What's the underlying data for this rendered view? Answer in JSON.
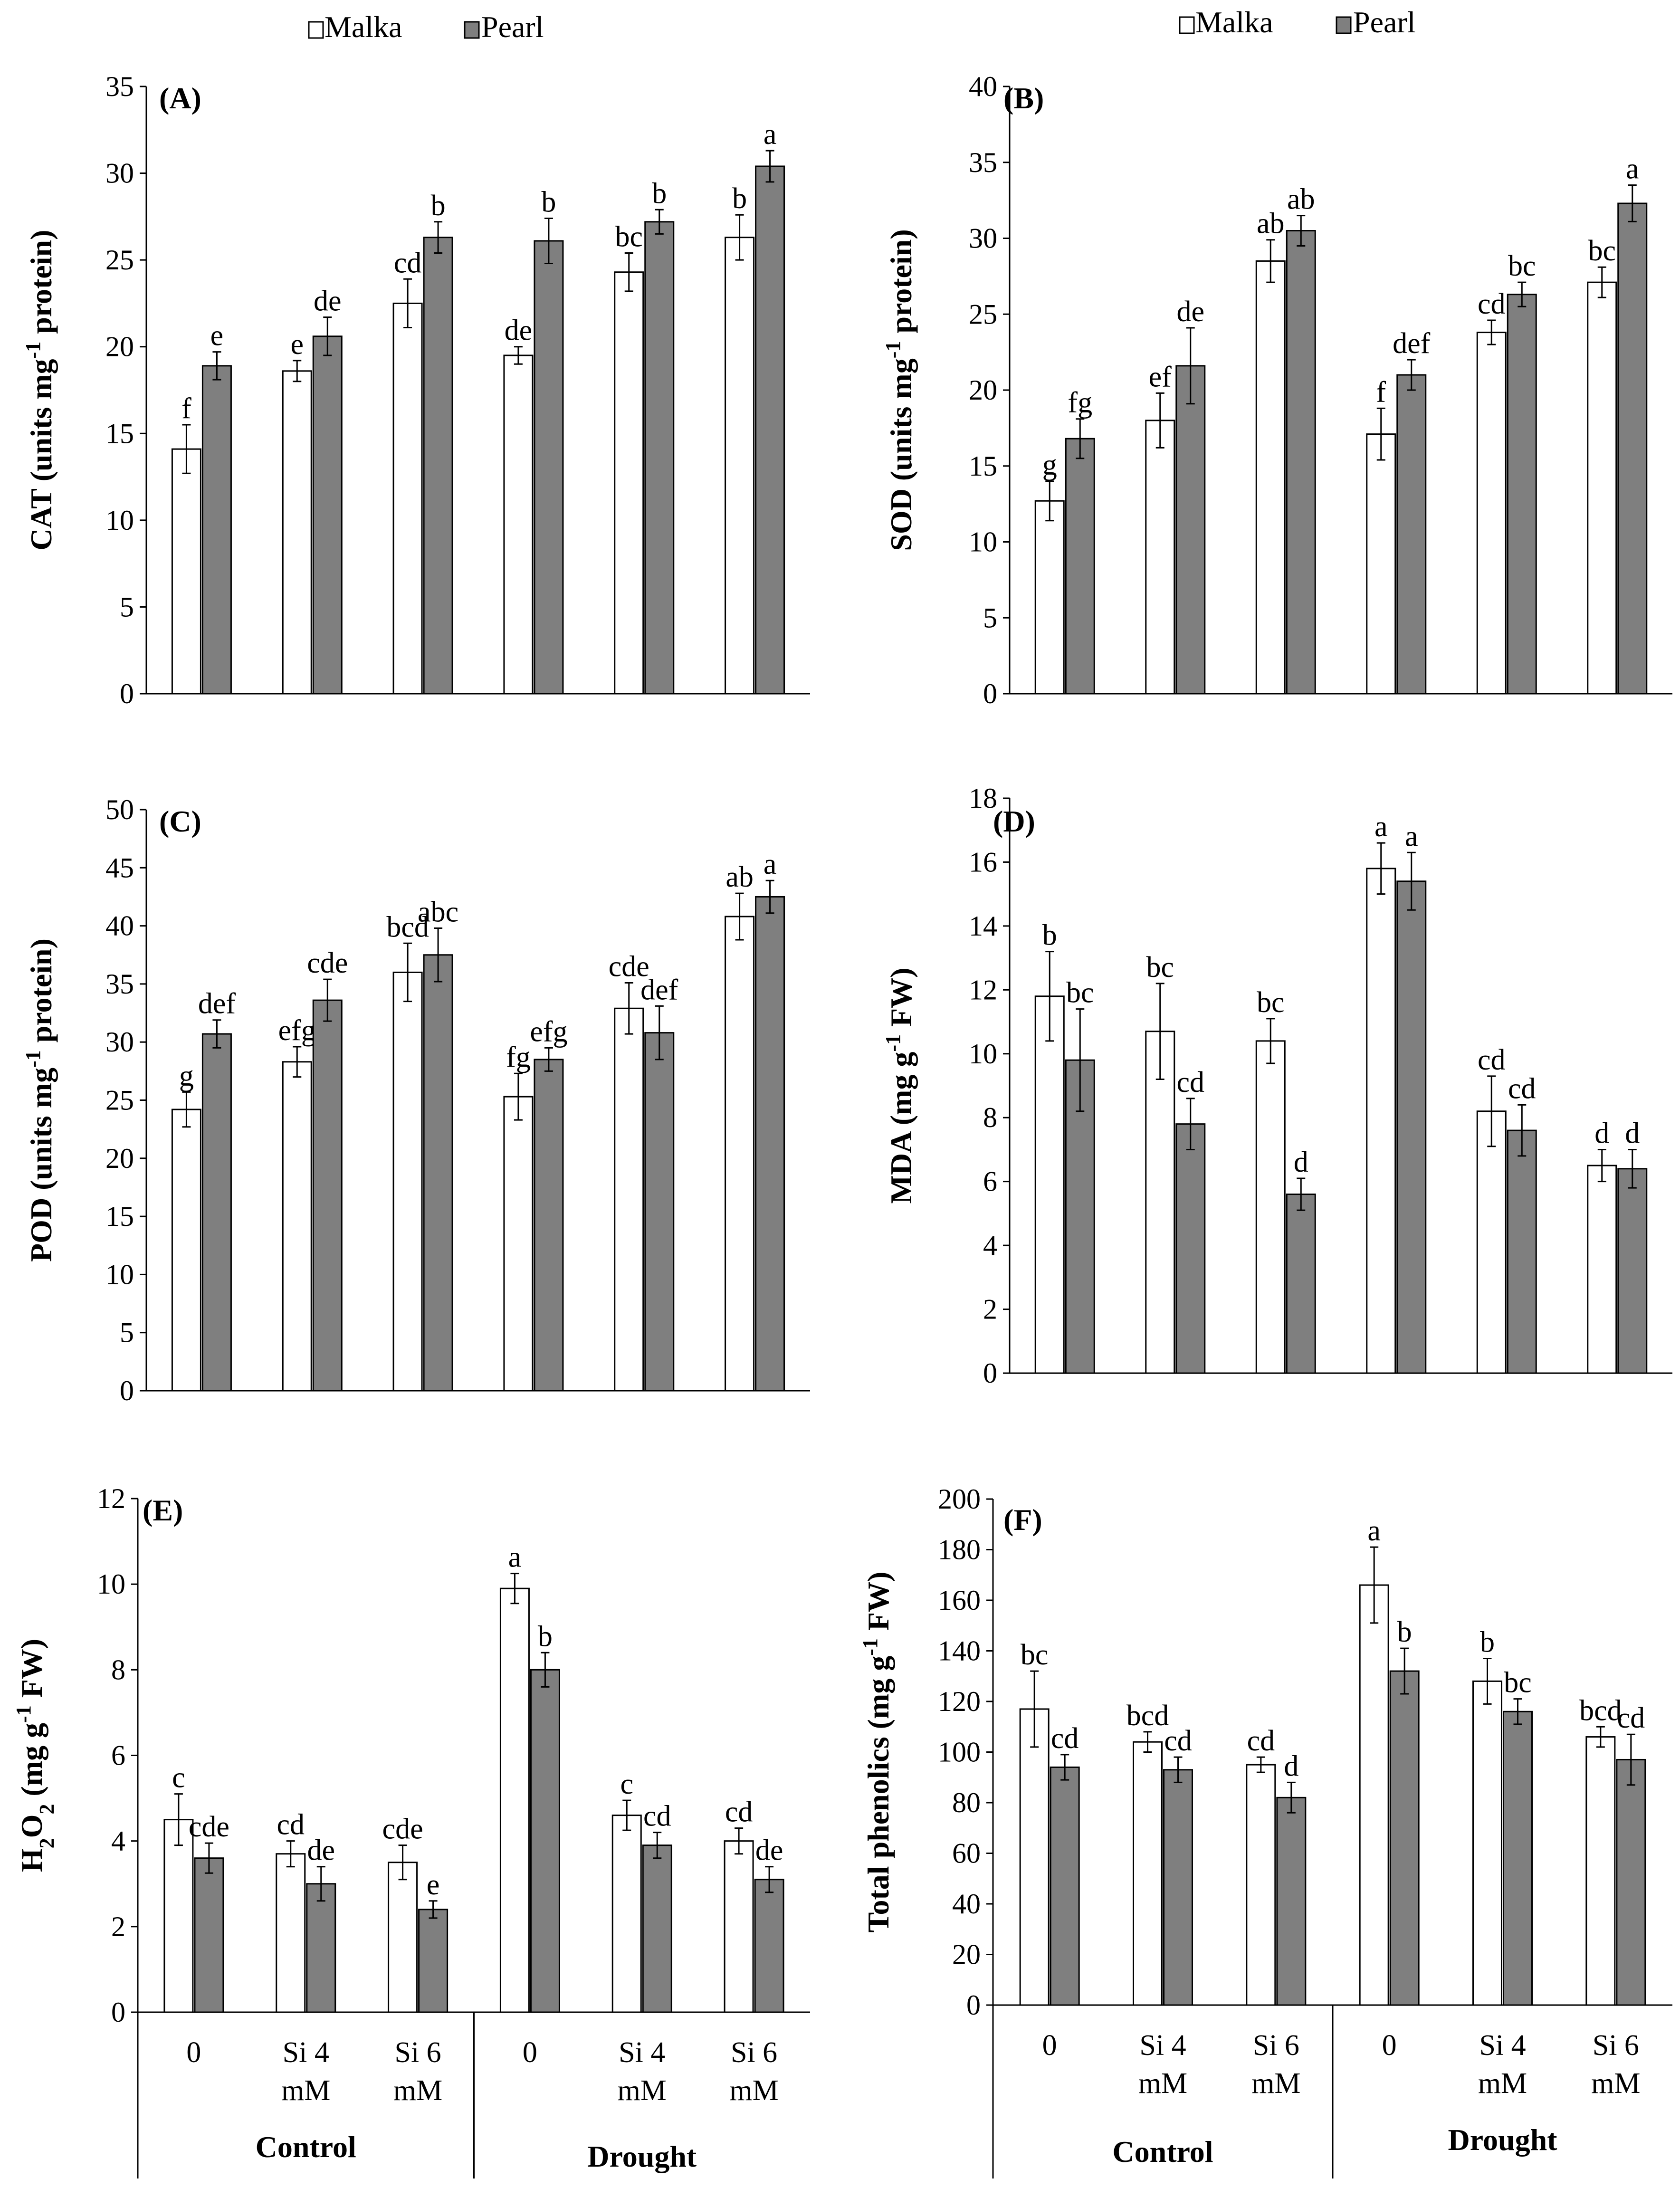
{
  "legend": {
    "labels": [
      "Malka",
      "Pearl"
    ],
    "colors": [
      "#ffffff",
      "#7f7f7f"
    ]
  },
  "x_axis": {
    "categories": [
      [
        "0"
      ],
      [
        "Si 4",
        "mM"
      ],
      [
        "Si 6",
        "mM"
      ],
      [
        "0"
      ],
      [
        "Si 4",
        "mM"
      ],
      [
        "Si 6",
        "mM"
      ]
    ],
    "groups": [
      "Control",
      "Drought"
    ]
  },
  "chart_data": [
    {
      "type": "bar",
      "id": "A",
      "title": "(A)",
      "ylabel": {
        "main": "CAT (units mg",
        "sup": "-1",
        "tail": " protein)"
      },
      "ylim": [
        0,
        35
      ],
      "yticks": [
        0,
        5,
        10,
        15,
        20,
        25,
        30,
        35
      ],
      "series": [
        {
          "name": "Malka",
          "values": [
            14.1,
            18.6,
            22.5,
            19.5,
            24.3,
            26.3
          ],
          "errors": [
            1.4,
            0.6,
            1.4,
            0.5,
            1.1,
            1.3
          ],
          "letters": [
            "f",
            "e",
            "cd",
            "de",
            "bc",
            "b"
          ]
        },
        {
          "name": "Pearl",
          "values": [
            18.9,
            20.6,
            26.3,
            26.1,
            27.2,
            30.4
          ],
          "errors": [
            0.8,
            1.1,
            0.9,
            1.3,
            0.7,
            0.9
          ],
          "letters": [
            "e",
            "de",
            "b",
            "b",
            "b",
            "a"
          ]
        }
      ]
    },
    {
      "type": "bar",
      "id": "B",
      "title": "(B)",
      "ylabel": {
        "main": "SOD (units mg",
        "sup": "-1",
        "tail": " protein)"
      },
      "ylim": [
        0,
        40
      ],
      "yticks": [
        0,
        5,
        10,
        15,
        20,
        25,
        30,
        35,
        40
      ],
      "series": [
        {
          "name": "Malka",
          "values": [
            12.7,
            18.0,
            28.5,
            17.1,
            23.8,
            27.1
          ],
          "errors": [
            1.3,
            1.8,
            1.4,
            1.7,
            0.8,
            1.0
          ],
          "letters": [
            "g",
            "ef",
            "ab",
            "f",
            "cd",
            "bc"
          ]
        },
        {
          "name": "Pearl",
          "values": [
            16.8,
            21.6,
            30.5,
            21.0,
            26.3,
            32.3
          ],
          "errors": [
            1.3,
            2.5,
            1.0,
            1.0,
            0.8,
            1.2
          ],
          "letters": [
            "fg",
            "de",
            "ab",
            "def",
            "bc",
            "a"
          ]
        }
      ]
    },
    {
      "type": "bar",
      "id": "C",
      "title": "(C)",
      "ylabel": {
        "main": "POD (units mg",
        "sup": "-1",
        "tail": " protein)"
      },
      "ylim": [
        0,
        50
      ],
      "yticks": [
        0,
        5,
        10,
        15,
        20,
        25,
        30,
        35,
        40,
        45,
        50
      ],
      "series": [
        {
          "name": "Malka",
          "values": [
            24.2,
            28.3,
            36.0,
            25.3,
            32.9,
            40.8
          ],
          "errors": [
            1.5,
            1.3,
            2.5,
            2.0,
            2.2,
            2.0
          ],
          "letters": [
            "g",
            "efg",
            "bcd",
            "fg",
            "cde",
            "ab"
          ]
        },
        {
          "name": "Pearl",
          "values": [
            30.7,
            33.6,
            37.5,
            28.5,
            30.8,
            42.5
          ],
          "errors": [
            1.2,
            1.8,
            2.3,
            1.0,
            2.3,
            1.4
          ],
          "letters": [
            "def",
            "cde",
            "abc",
            "efg",
            "def",
            "a"
          ]
        }
      ]
    },
    {
      "type": "bar",
      "id": "D",
      "title": "(D)",
      "ylabel": {
        "main": "MDA (mg g",
        "sup": "-1",
        "tail": " FW)"
      },
      "ylim": [
        0,
        18
      ],
      "yticks": [
        0,
        2,
        4,
        6,
        8,
        10,
        12,
        14,
        16,
        18
      ],
      "series": [
        {
          "name": "Malka",
          "values": [
            11.8,
            10.7,
            10.4,
            15.8,
            8.2,
            6.5
          ],
          "errors": [
            1.4,
            1.5,
            0.7,
            0.8,
            1.1,
            0.5
          ],
          "letters": [
            "b",
            "bc",
            "bc",
            "a",
            "cd",
            "d"
          ]
        },
        {
          "name": "Pearl",
          "values": [
            9.8,
            7.8,
            5.6,
            15.4,
            7.6,
            6.4
          ],
          "errors": [
            1.6,
            0.8,
            0.5,
            0.9,
            0.8,
            0.6
          ],
          "letters": [
            "bc",
            "cd",
            "d",
            "a",
            "cd",
            "d"
          ]
        }
      ]
    },
    {
      "type": "bar",
      "id": "E",
      "title": "(E)",
      "ylabel": {
        "main": "H",
        "sub": "2",
        "mid": "O",
        "sub2": "2",
        "tail": " (mg g",
        "sup": "-1",
        "tail2": " FW)"
      },
      "ylim": [
        0,
        12
      ],
      "yticks": [
        0,
        2,
        4,
        6,
        8,
        10,
        12
      ],
      "series": [
        {
          "name": "Malka",
          "values": [
            4.5,
            3.7,
            3.5,
            9.9,
            4.6,
            4.0
          ],
          "errors": [
            0.6,
            0.3,
            0.4,
            0.35,
            0.35,
            0.3
          ],
          "letters": [
            "c",
            "cd",
            "cde",
            "a",
            "c",
            "cd"
          ]
        },
        {
          "name": "Pearl",
          "values": [
            3.6,
            3.0,
            2.4,
            8.0,
            3.9,
            3.1
          ],
          "errors": [
            0.35,
            0.4,
            0.2,
            0.4,
            0.3,
            0.3
          ],
          "letters": [
            "cde",
            "de",
            "e",
            "b",
            "cd",
            "de"
          ]
        }
      ]
    },
    {
      "type": "bar",
      "id": "F",
      "title": "(F)",
      "ylabel": {
        "main": "Total phenolics  (mg g",
        "sup": "-1",
        "tail": "  FW)"
      },
      "ylim": [
        0,
        200
      ],
      "yticks": [
        0,
        20,
        40,
        60,
        80,
        100,
        120,
        140,
        160,
        180,
        200
      ],
      "series": [
        {
          "name": "Malka",
          "values": [
            117,
            104,
            95,
            166,
            128,
            106
          ],
          "errors": [
            15,
            4,
            3,
            15,
            9,
            4
          ],
          "letters": [
            "bc",
            "bcd",
            "cd",
            "a",
            "b",
            "bcd"
          ]
        },
        {
          "name": "Pearl",
          "values": [
            94,
            93,
            82,
            132,
            116,
            97
          ],
          "errors": [
            5,
            5,
            6,
            9,
            5,
            10
          ],
          "letters": [
            "cd",
            "cd",
            "d",
            "b",
            "bc",
            "cd"
          ]
        }
      ]
    }
  ]
}
